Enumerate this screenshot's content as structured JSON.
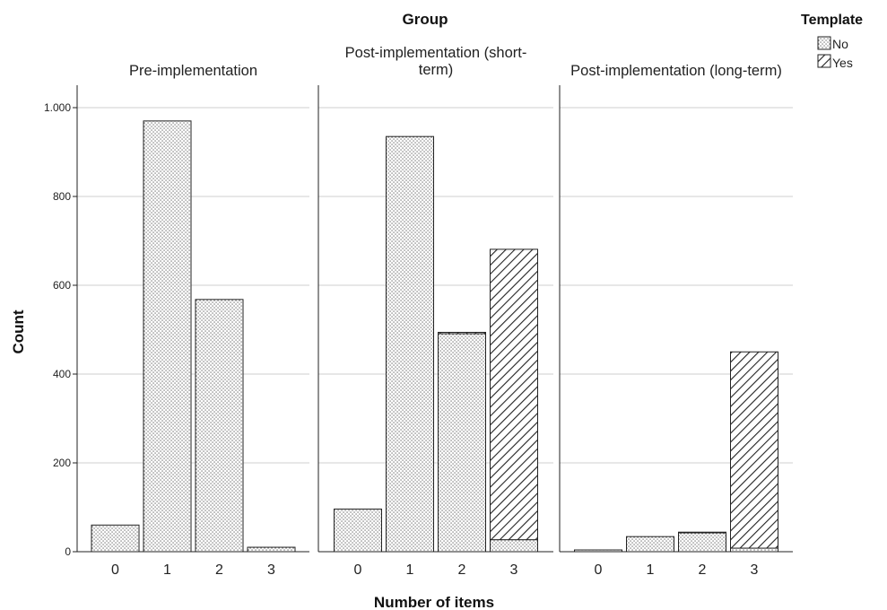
{
  "chart_data": {
    "type": "bar",
    "stacked": true,
    "group_title": "Group",
    "xlabel": "Number of items",
    "ylabel": "Count",
    "ylim": [
      0,
      1050
    ],
    "yticks": [
      0,
      200,
      400,
      600,
      800,
      1000
    ],
    "ytick_labels": [
      "0",
      "200",
      "400",
      "600",
      "800",
      "1.000"
    ],
    "grid": true,
    "legend": {
      "title": "Template",
      "position": "top-right",
      "entries": [
        {
          "name": "No",
          "pattern": "dots"
        },
        {
          "name": "Yes",
          "pattern": "hatch"
        }
      ]
    },
    "categories": [
      "0",
      "1",
      "2",
      "3"
    ],
    "panels": [
      {
        "title": "Pre-implementation",
        "series": [
          {
            "name": "No",
            "values": [
              60,
              970,
              568,
              10
            ]
          },
          {
            "name": "Yes",
            "values": [
              0,
              0,
              0,
              0
            ]
          }
        ]
      },
      {
        "title": "Post-implementation (short-term)",
        "title_lines": [
          "Post-implementation (short-",
          "term)"
        ],
        "series": [
          {
            "name": "No",
            "values": [
              96,
              935,
              491,
              27
            ]
          },
          {
            "name": "Yes",
            "values": [
              0,
              0,
              3,
              654
            ]
          }
        ]
      },
      {
        "title": "Post-implementation (long-term)",
        "series": [
          {
            "name": "No",
            "values": [
              4,
              34,
              43,
              8
            ]
          },
          {
            "name": "Yes",
            "values": [
              0,
              0,
              1,
              442
            ]
          }
        ]
      }
    ]
  }
}
